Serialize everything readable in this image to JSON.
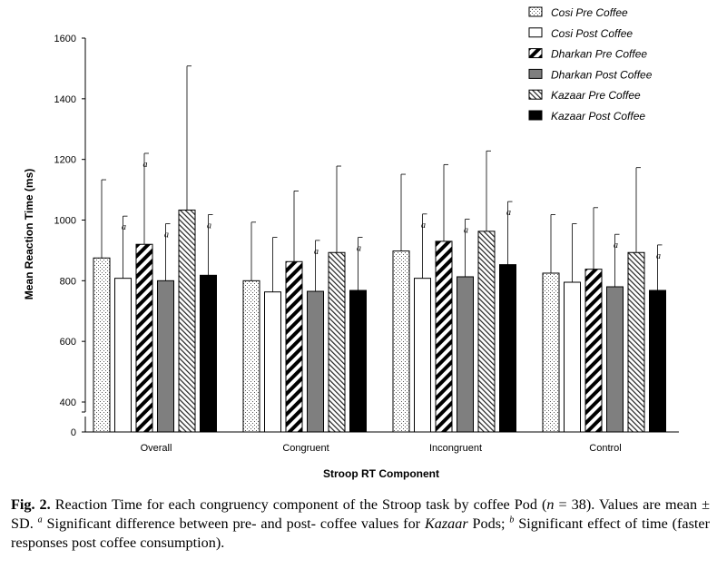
{
  "chart_data": {
    "type": "bar",
    "xlabel": "Stroop RT Component",
    "ylabel": "Mean Reaction Time (ms)",
    "ylim": [
      0,
      1600
    ],
    "axis_break": [
      0,
      400
    ],
    "y_ticks": [
      "0",
      "400",
      "600",
      "800",
      "1000",
      "1200",
      "1400",
      "1600"
    ],
    "categories": [
      "Overall",
      "Congruent",
      "Incongruent",
      "Control"
    ],
    "legend_position": "top-right",
    "sig_marker": "a",
    "series": [
      {
        "name": "Cosi Pre Coffee",
        "pattern": "dots",
        "values": [
          875,
          800,
          898,
          825
        ],
        "sd": [
          258,
          193,
          253,
          193
        ],
        "sig": [
          false,
          false,
          false,
          false
        ]
      },
      {
        "name": "Cosi Post Coffee",
        "pattern": "white",
        "values": [
          808,
          763,
          808,
          795
        ],
        "sd": [
          205,
          180,
          212,
          193
        ],
        "sig": [
          true,
          false,
          true,
          false
        ]
      },
      {
        "name": "Dharkan Pre Coffee",
        "pattern": "wide-hatch",
        "values": [
          920,
          863,
          930,
          838
        ],
        "sd": [
          300,
          233,
          253,
          203
        ],
        "sig": [
          true,
          false,
          false,
          false
        ]
      },
      {
        "name": "Dharkan Post Coffee",
        "pattern": "gray",
        "values": [
          800,
          765,
          813,
          780
        ],
        "sd": [
          188,
          168,
          190,
          173
        ],
        "sig": [
          true,
          true,
          true,
          true
        ]
      },
      {
        "name": "Kazaar Pre Coffee",
        "pattern": "fine-hatch",
        "values": [
          1033,
          893,
          963,
          893
        ],
        "sd": [
          475,
          285,
          265,
          280
        ],
        "sig": [
          false,
          false,
          false,
          false
        ]
      },
      {
        "name": "Kazaar Post Coffee",
        "pattern": "black",
        "values": [
          818,
          768,
          853,
          768
        ],
        "sd": [
          200,
          175,
          208,
          150
        ],
        "sig": [
          true,
          true,
          true,
          true
        ]
      }
    ]
  },
  "caption": {
    "label": "Fig. 2.",
    "part1": " Reaction Time for each congruency component of the Stroop task by coffee Pod (",
    "n_symbol": "n",
    "part2": " = 38). Values are mean ± SD. ",
    "sup_a": "a",
    "part3": " Significant difference between pre- and post- coffee values for ",
    "kazaar": "Kazaar",
    "part4": " Pods; ",
    "sup_b": "b",
    "part5": " Significant effect of time (faster responses post coffee consumption)."
  }
}
